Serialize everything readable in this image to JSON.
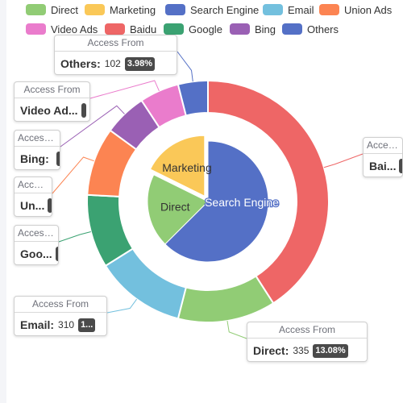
{
  "chart_data": {
    "type": "pie",
    "legend": {
      "position": "top",
      "items": [
        {
          "name": "Direct",
          "color": "#91cc75"
        },
        {
          "name": "Marketing",
          "color": "#fac858"
        },
        {
          "name": "Search Engine",
          "color": "#5470c6"
        },
        {
          "name": "Email",
          "color": "#73c0de"
        },
        {
          "name": "Union Ads",
          "color": "#fc8452"
        },
        {
          "name": "Video Ads",
          "color": "#ea7ccc"
        },
        {
          "name": "Baidu",
          "color": "#ee6666"
        },
        {
          "name": "Google",
          "color": "#3ba272"
        },
        {
          "name": "Bing",
          "color": "#9a60b4"
        },
        {
          "name": "Others",
          "color": "#5470c6"
        }
      ]
    },
    "series": [
      {
        "ring": "inner",
        "label_position": "inside",
        "data": [
          {
            "name": "Direct",
            "value": 335,
            "color": "#91cc75"
          },
          {
            "name": "Marketing",
            "value": 300,
            "color": "#fac858",
            "selected": true
          },
          {
            "name": "Search Engine",
            "value": 1060,
            "color": "#5470c6"
          }
        ]
      },
      {
        "ring": "outer",
        "label_position": "outside callout",
        "data": [
          {
            "name": "Direct",
            "value": 335,
            "color": "#91cc75",
            "callout_name": "Direct",
            "callout_value": "335",
            "callout_percent": "13.08%"
          },
          {
            "name": "Email",
            "value": 310,
            "color": "#73c0de",
            "callout_name": "Email",
            "callout_value": "310",
            "callout_percent": "1..."
          },
          {
            "name": "Google",
            "value": 251,
            "color": "#3ba272",
            "callout_name": "Goo..."
          },
          {
            "name": "Union Ads",
            "value": 234,
            "color": "#fc8452",
            "callout_name": "Un..."
          },
          {
            "name": "Bing",
            "value": 147,
            "color": "#9a60b4",
            "callout_name": "Bing"
          },
          {
            "name": "Video Ads",
            "value": 135,
            "color": "#ea7ccc",
            "callout_name": "Video Ad..."
          },
          {
            "name": "Others",
            "value": 102,
            "color": "#5470c6",
            "callout_name": "Others",
            "callout_value": "102",
            "callout_percent": "3.98%"
          },
          {
            "name": "Baidu",
            "value": 1048,
            "color": "#ee6666",
            "callout_name": "Bai..."
          }
        ]
      }
    ],
    "callout_header": "Access From",
    "callout_headers_truncated": {
      "Bing": "Access ...",
      "Union Ads": "Acces...",
      "Google": "Access ...",
      "Baidu": "Acces..."
    }
  }
}
